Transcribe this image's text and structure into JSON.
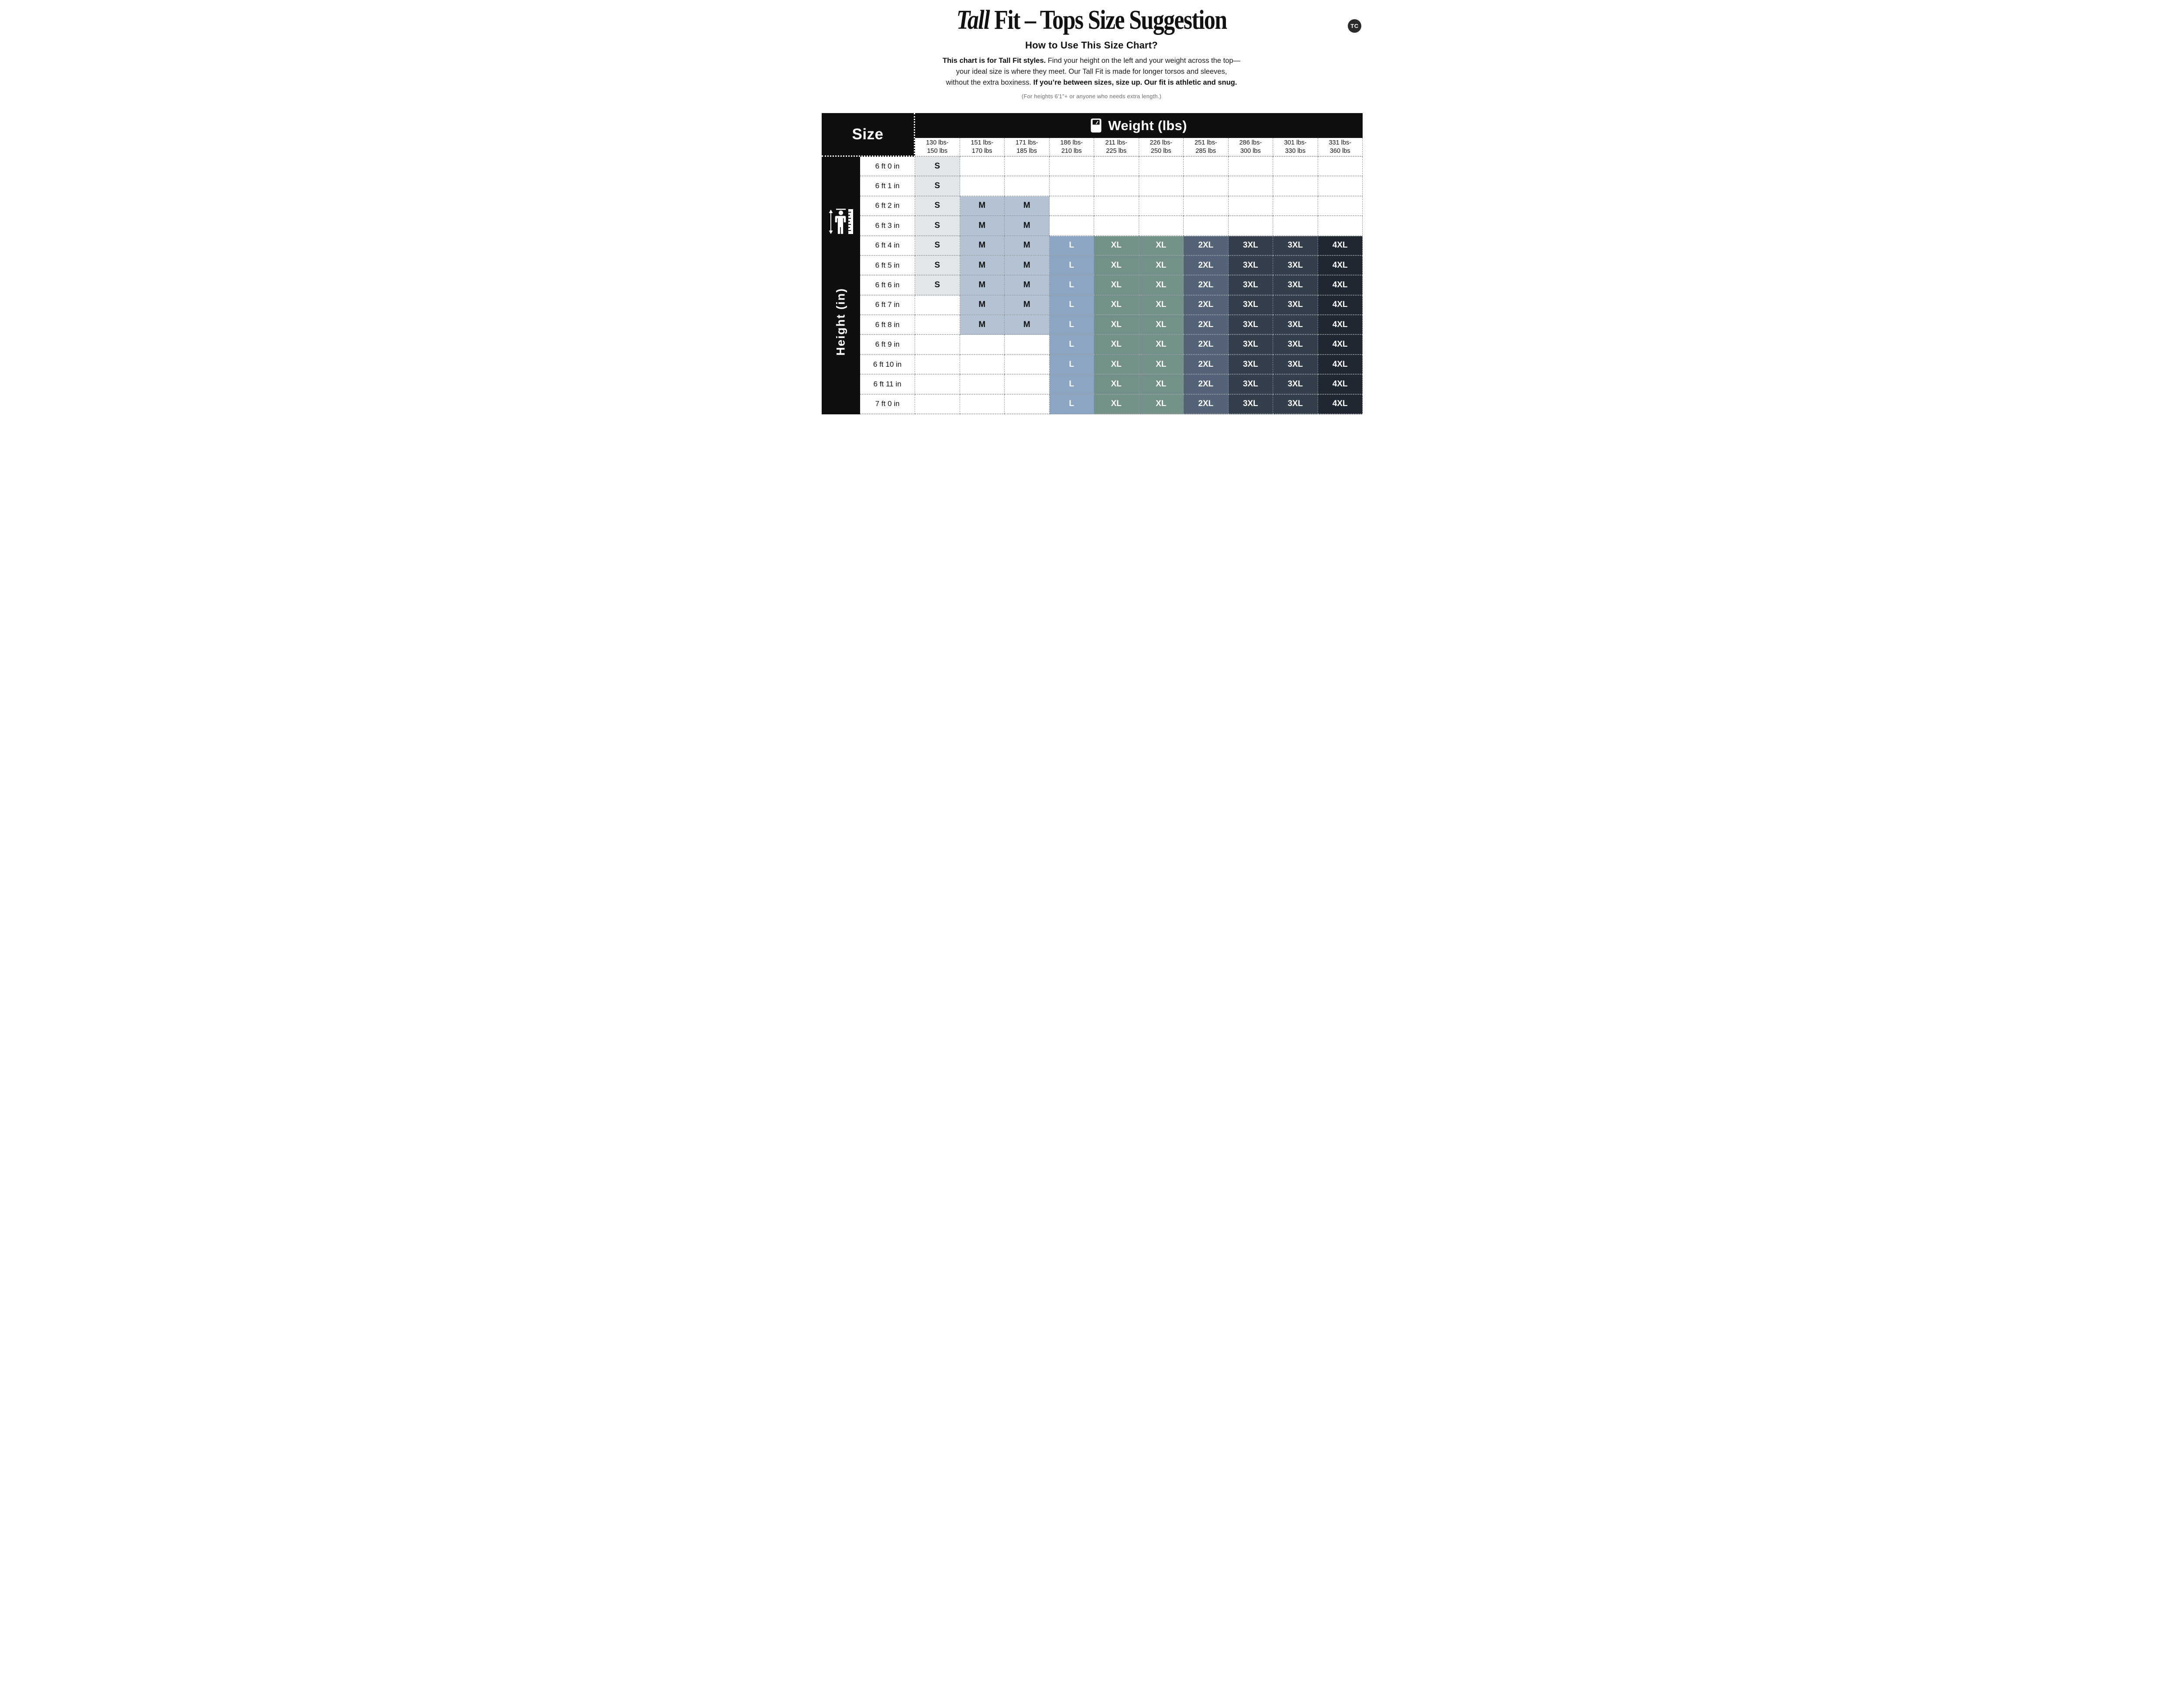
{
  "logo": {
    "text": "TC"
  },
  "title": {
    "accent": "Tall",
    "rest": " Fit – Tops Size Suggestion"
  },
  "subtitle": "How to Use This Size Chart?",
  "paragraph": {
    "lines": [
      [
        {
          "text": "This chart is for Tall Fit styles.",
          "bold": true
        },
        {
          "text": " Find your height on the left and your weight across the top—",
          "bold": false
        }
      ],
      [
        {
          "text": "your ideal size is where they meet. Our Tall Fit is made for longer torsos and sleeves,",
          "bold": false
        }
      ],
      [
        {
          "text": "without the extra boxiness.",
          "bold": false
        },
        {
          "text": " If you’re between sizes, size up. Our fit is athletic and snug.",
          "bold": true
        }
      ]
    ]
  },
  "note": "(For heights 6'1\"+ or anyone who needs extra length.)",
  "table": {
    "corner_label": "Size",
    "weight_header": "Weight (lbs)",
    "height_axis_label": "Height  (in)",
    "weight_columns": [
      [
        "130 lbs-",
        "150 lbs"
      ],
      [
        "151 lbs-",
        "170 lbs"
      ],
      [
        "171 lbs-",
        "185 lbs"
      ],
      [
        "186 lbs-",
        "210 lbs"
      ],
      [
        "211 lbs-",
        "225 lbs"
      ],
      [
        "226 lbs-",
        "250 lbs"
      ],
      [
        "251 lbs-",
        "285 lbs"
      ],
      [
        "286 lbs-",
        "300 lbs"
      ],
      [
        "301 lbs-",
        "330 lbs"
      ],
      [
        "331 lbs-",
        "360 lbs"
      ]
    ],
    "height_rows": [
      "6 ft 0 in",
      "6 ft 1 in",
      "6 ft 2 in",
      "6 ft 3 in",
      "6 ft 4 in",
      "6 ft 5 in",
      "6 ft 6 in",
      "6 ft 7 in",
      "6 ft 8 in",
      "6 ft 9 in",
      "6 ft 10 in",
      "6 ft 11 in",
      "7 ft 0 in"
    ],
    "cells": [
      [
        "S",
        "",
        "",
        "",
        "",
        "",
        "",
        "",
        "",
        ""
      ],
      [
        "S",
        "",
        "",
        "",
        "",
        "",
        "",
        "",
        "",
        ""
      ],
      [
        "S",
        "M",
        "M",
        "",
        "",
        "",
        "",
        "",
        "",
        ""
      ],
      [
        "S",
        "M",
        "M",
        "",
        "",
        "",
        "",
        "",
        "",
        ""
      ],
      [
        "S",
        "M",
        "M",
        "L",
        "XL",
        "XL",
        "2XL",
        "3XL",
        "3XL",
        "4XL"
      ],
      [
        "S",
        "M",
        "M",
        "L",
        "XL",
        "XL",
        "2XL",
        "3XL",
        "3XL",
        "4XL"
      ],
      [
        "S",
        "M",
        "M",
        "L",
        "XL",
        "XL",
        "2XL",
        "3XL",
        "3XL",
        "4XL"
      ],
      [
        "",
        "M",
        "M",
        "L",
        "XL",
        "XL",
        "2XL",
        "3XL",
        "3XL",
        "4XL"
      ],
      [
        "",
        "M",
        "M",
        "L",
        "XL",
        "XL",
        "2XL",
        "3XL",
        "3XL",
        "4XL"
      ],
      [
        "",
        "",
        "",
        "L",
        "XL",
        "XL",
        "2XL",
        "3XL",
        "3XL",
        "4XL"
      ],
      [
        "",
        "",
        "",
        "L",
        "XL",
        "XL",
        "2XL",
        "3XL",
        "3XL",
        "4XL"
      ],
      [
        "",
        "",
        "",
        "L",
        "XL",
        "XL",
        "2XL",
        "3XL",
        "3XL",
        "4XL"
      ],
      [
        "",
        "",
        "",
        "L",
        "XL",
        "XL",
        "2XL",
        "3XL",
        "3XL",
        "4XL"
      ]
    ],
    "size_colors": {
      "S": "#e2e6e8",
      "M": "#b3c2d3",
      "L": "#8ba5c2",
      "XL": "#739089",
      "2XL": "#546377",
      "3XL": "#343f4c",
      "4XL": "#1f2732"
    },
    "light_text_sizes": [
      "L",
      "XL",
      "2XL",
      "3XL",
      "4XL"
    ],
    "empty_cell_color": "#ffffff"
  }
}
